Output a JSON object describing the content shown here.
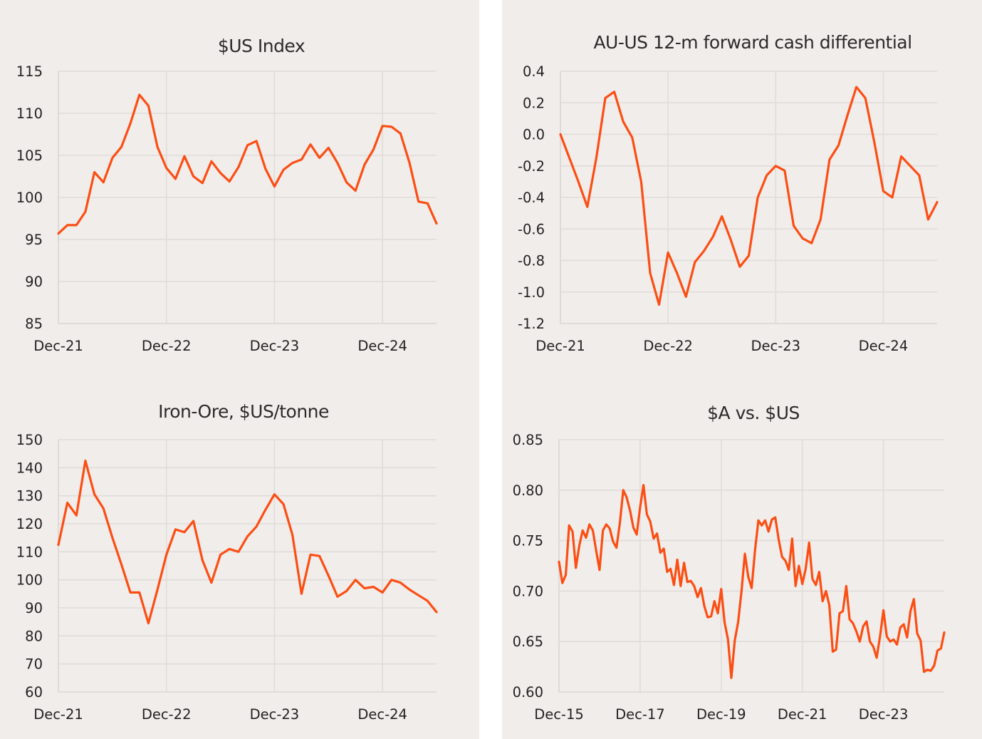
{
  "colors": {
    "panel_background": "#f1edea",
    "line": "#fb4e14",
    "grid": "#dfdcd9",
    "text": "#222222"
  },
  "chart_data": [
    {
      "id": "usd-index",
      "type": "line",
      "title": "$US Index",
      "xlabel": "",
      "ylabel": "",
      "ylim": [
        85,
        115
      ],
      "yticks": [
        85,
        90,
        95,
        100,
        105,
        110,
        115
      ],
      "ytick_labels": [
        "85",
        "90",
        "95",
        "100",
        "105",
        "110",
        "115"
      ],
      "xlim": [
        0,
        42
      ],
      "xticks": [
        0,
        12,
        24,
        36
      ],
      "xtick_labels": [
        "Dec-21",
        "Dec-22",
        "Dec-23",
        "Dec-24"
      ],
      "grid": "vertical and horizontal",
      "series": [
        {
          "x": [
            0,
            1,
            2,
            3,
            4,
            5,
            6,
            7,
            8,
            9,
            10,
            11,
            12,
            13,
            14,
            15,
            16,
            17,
            18,
            19,
            20,
            21,
            22,
            23,
            24,
            25,
            26,
            27,
            28,
            29,
            30,
            31,
            32,
            33,
            34,
            35,
            36,
            37,
            38,
            39,
            40,
            41,
            42
          ],
          "values": [
            95.7,
            96.7,
            96.7,
            98.3,
            103.0,
            101.8,
            104.7,
            106.0,
            108.8,
            112.2,
            110.9,
            106.0,
            103.5,
            102.2,
            104.9,
            102.5,
            101.7,
            104.3,
            102.9,
            101.9,
            103.6,
            106.2,
            106.7,
            103.4,
            101.3,
            103.3,
            104.1,
            104.5,
            106.3,
            104.7,
            105.9,
            104.1,
            101.8,
            100.8,
            103.9,
            105.7,
            108.5,
            108.4,
            107.6,
            104.1,
            99.5,
            99.3,
            96.9
          ]
        }
      ]
    },
    {
      "id": "cash-differential",
      "type": "line",
      "title": "AU-US 12-m forward cash differential",
      "xlabel": "",
      "ylabel": "",
      "ylim": [
        -1.2,
        0.4
      ],
      "yticks": [
        -1.2,
        -1.0,
        -0.8,
        -0.6,
        -0.4,
        -0.2,
        0.0,
        0.2,
        0.4
      ],
      "ytick_labels": [
        "-1.2",
        "-1.0",
        "-0.8",
        "-0.6",
        "-0.4",
        "-0.2",
        "0.0",
        "0.2",
        "0.4"
      ],
      "xlim": [
        0,
        42
      ],
      "xticks": [
        0,
        12,
        24,
        36
      ],
      "xtick_labels": [
        "Dec-21",
        "Dec-22",
        "Dec-23",
        "Dec-24"
      ],
      "grid": "vertical and horizontal",
      "series": [
        {
          "x": [
            0,
            1,
            2,
            3,
            4,
            5,
            6,
            7,
            8,
            9,
            10,
            11,
            12,
            13,
            14,
            15,
            16,
            17,
            18,
            19,
            20,
            21,
            22,
            23,
            24,
            25,
            26,
            27,
            28,
            29,
            30,
            31,
            32,
            33,
            34,
            35,
            36,
            37,
            38,
            39,
            40,
            41,
            42
          ],
          "values": [
            0.0,
            -0.15,
            -0.3,
            -0.46,
            -0.15,
            0.23,
            0.27,
            0.08,
            -0.02,
            -0.3,
            -0.88,
            -1.08,
            -0.75,
            -0.88,
            -1.03,
            -0.81,
            -0.74,
            -0.65,
            -0.52,
            -0.67,
            -0.84,
            -0.77,
            -0.4,
            -0.26,
            -0.2,
            -0.23,
            -0.58,
            -0.66,
            -0.69,
            -0.54,
            -0.16,
            -0.07,
            0.12,
            0.3,
            0.23,
            -0.05,
            -0.36,
            -0.4,
            -0.14,
            -0.2,
            -0.26,
            -0.54,
            -0.43
          ]
        }
      ]
    },
    {
      "id": "iron-ore",
      "type": "line",
      "title": "Iron-Ore, $US/tonne",
      "xlabel": "",
      "ylabel": "",
      "ylim": [
        60,
        150
      ],
      "yticks": [
        60,
        70,
        80,
        90,
        100,
        110,
        120,
        130,
        140,
        150
      ],
      "ytick_labels": [
        "60",
        "70",
        "80",
        "90",
        "100",
        "110",
        "120",
        "130",
        "140",
        "150"
      ],
      "xlim": [
        0,
        42
      ],
      "xticks": [
        0,
        12,
        24,
        36
      ],
      "xtick_labels": [
        "Dec-21",
        "Dec-22",
        "Dec-23",
        "Dec-24"
      ],
      "grid": "vertical and horizontal",
      "series": [
        {
          "x": [
            0,
            1,
            2,
            3,
            4,
            5,
            6,
            7,
            8,
            9,
            10,
            11,
            12,
            13,
            14,
            15,
            16,
            17,
            18,
            19,
            20,
            21,
            22,
            23,
            24,
            25,
            26,
            27,
            28,
            29,
            30,
            31,
            32,
            33,
            34,
            35,
            36,
            37,
            38,
            39,
            40,
            41,
            42
          ],
          "values": [
            112.5,
            127.5,
            123.0,
            142.5,
            130.5,
            125.5,
            115.0,
            105.5,
            95.5,
            95.5,
            84.5,
            96.5,
            109.0,
            118.0,
            117.0,
            121.0,
            107.0,
            99.0,
            109.0,
            111.0,
            110.0,
            115.5,
            119.0,
            125.0,
            130.5,
            127.0,
            116.0,
            95.0,
            109.0,
            108.5,
            101.5,
            94.0,
            96.0,
            100.0,
            97.0,
            97.5,
            95.5,
            100.0,
            99.0,
            96.5,
            94.5,
            92.5,
            88.5
          ]
        }
      ]
    },
    {
      "id": "aud-usd",
      "type": "line",
      "title": "$A vs. $US",
      "xlabel": "",
      "ylabel": "",
      "ylim": [
        0.6,
        0.85
      ],
      "yticks": [
        0.6,
        0.65,
        0.7,
        0.75,
        0.8,
        0.85
      ],
      "ytick_labels": [
        "0.60",
        "0.65",
        "0.70",
        "0.75",
        "0.80",
        "0.85"
      ],
      "xlim": [
        0,
        114
      ],
      "xticks": [
        0,
        24,
        48,
        72,
        96
      ],
      "xtick_labels": [
        "Dec-15",
        "Dec-17",
        "Dec-19",
        "Dec-21",
        "Dec-23"
      ],
      "grid": "vertical and horizontal",
      "series": [
        {
          "x": [
            0,
            1,
            2,
            3,
            4,
            5,
            6,
            7,
            8,
            9,
            10,
            11,
            12,
            13,
            14,
            15,
            16,
            17,
            18,
            19,
            20,
            21,
            22,
            23,
            24,
            25,
            26,
            27,
            28,
            29,
            30,
            31,
            32,
            33,
            34,
            35,
            36,
            37,
            38,
            39,
            40,
            41,
            42,
            43,
            44,
            45,
            46,
            47,
            48,
            49,
            50,
            51,
            52,
            53,
            54,
            55,
            56,
            57,
            58,
            59,
            60,
            61,
            62,
            63,
            64,
            65,
            66,
            67,
            68,
            69,
            70,
            71,
            72,
            73,
            74,
            75,
            76,
            77,
            78,
            79,
            80,
            81,
            82,
            83,
            84,
            85,
            86,
            87,
            88,
            89,
            90,
            91,
            92,
            93,
            94,
            95,
            96,
            97,
            98,
            99,
            100,
            101,
            102,
            103,
            104,
            105,
            106,
            107,
            108,
            109,
            110,
            111,
            112,
            113,
            114
          ],
          "values": [
            0.729,
            0.708,
            0.716,
            0.765,
            0.759,
            0.723,
            0.745,
            0.76,
            0.753,
            0.766,
            0.76,
            0.74,
            0.721,
            0.76,
            0.766,
            0.762,
            0.749,
            0.743,
            0.767,
            0.8,
            0.793,
            0.78,
            0.763,
            0.756,
            0.783,
            0.805,
            0.776,
            0.769,
            0.752,
            0.757,
            0.738,
            0.742,
            0.719,
            0.722,
            0.706,
            0.731,
            0.705,
            0.728,
            0.709,
            0.71,
            0.705,
            0.694,
            0.703,
            0.685,
            0.674,
            0.675,
            0.69,
            0.678,
            0.702,
            0.669,
            0.652,
            0.614,
            0.651,
            0.669,
            0.7,
            0.737,
            0.714,
            0.703,
            0.74,
            0.77,
            0.765,
            0.77,
            0.759,
            0.771,
            0.773,
            0.751,
            0.734,
            0.73,
            0.721,
            0.752,
            0.705,
            0.725,
            0.707,
            0.722,
            0.748,
            0.712,
            0.706,
            0.719,
            0.69,
            0.7,
            0.686,
            0.64,
            0.642,
            0.678,
            0.68,
            0.705,
            0.672,
            0.668,
            0.66,
            0.65,
            0.665,
            0.67,
            0.65,
            0.645,
            0.634,
            0.655,
            0.681,
            0.655,
            0.65,
            0.652,
            0.647,
            0.664,
            0.667,
            0.654,
            0.68,
            0.692,
            0.658,
            0.651,
            0.62,
            0.622,
            0.621,
            0.626,
            0.641,
            0.643,
            0.659
          ]
        }
      ]
    }
  ]
}
